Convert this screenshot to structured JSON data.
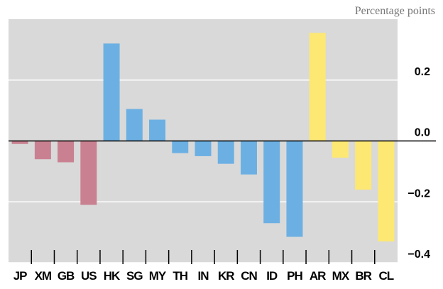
{
  "chart_data": {
    "type": "bar",
    "y_axis_label": "Percentage points",
    "categories": [
      "JP",
      "XM",
      "GB",
      "US",
      "HK",
      "SG",
      "MY",
      "TH",
      "IN",
      "KR",
      "CN",
      "ID",
      "PH",
      "AR",
      "MX",
      "BR",
      "CL"
    ],
    "values": [
      -0.01,
      -0.06,
      -0.07,
      -0.21,
      0.32,
      0.105,
      0.07,
      -0.04,
      -0.05,
      -0.075,
      -0.11,
      -0.27,
      -0.315,
      0.355,
      -0.055,
      -0.16,
      -0.33
    ],
    "colors": [
      "#c98191",
      "#c98191",
      "#c98191",
      "#c98191",
      "#6cb0e3",
      "#6cb0e3",
      "#6cb0e3",
      "#6cb0e3",
      "#6cb0e3",
      "#6cb0e3",
      "#6cb0e3",
      "#6cb0e3",
      "#6cb0e3",
      "#fce872",
      "#fce872",
      "#fce872",
      "#fce872"
    ],
    "ylim": [
      -0.4,
      0.4
    ],
    "yticks": [
      0.2,
      {
        "value": 0,
        "label": "0.0"
      },
      {
        "value": -0.2,
        "label": "−0.2"
      },
      {
        "value": -0.4,
        "label": "−0.4"
      }
    ],
    "grid": true
  }
}
